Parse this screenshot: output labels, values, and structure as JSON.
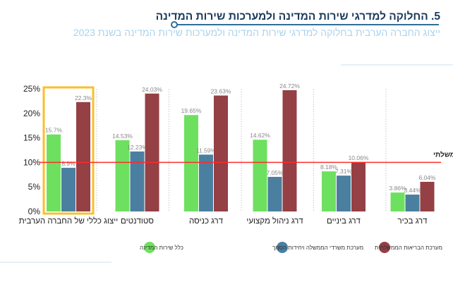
{
  "header": {
    "title": "5. החלוקה למדרגי שירות המדינה ולמערכות שירות המדינה",
    "subtitle": "ייצוג החברה הערבית בחלוקה למדרגי שירות המדינה ולמערכות שירות המדינה בשנת 2023"
  },
  "chart_data": {
    "type": "bar",
    "categories": [
      "ייצוג כללי של החברה הערבית",
      "סטודנטים",
      "דרג כניסה",
      "דרג ניהול מקצועי",
      "דרג ביניים",
      "דרג בכיר"
    ],
    "series": [
      {
        "name": "כלל שירות המדינה",
        "color": "#6ee05f",
        "values": [
          15.7,
          14.53,
          19.65,
          14.62,
          8.18,
          3.86
        ],
        "labels": [
          "15.7%",
          "14.53%",
          "19.65%",
          "14.62%",
          "8.18%",
          "3.86%"
        ]
      },
      {
        "name": "מערכת משרדי הממשלה ויחידות הסמך",
        "color": "#4a7fa0",
        "values": [
          8.9,
          12.23,
          11.59,
          7.05,
          7.31,
          3.44
        ],
        "labels": [
          "8.9%",
          "12.23%",
          "11.59%",
          "7.05%",
          "7.31%",
          "3.44%"
        ]
      },
      {
        "name": "מערכת הבריאות הממשלתית",
        "color": "#944044",
        "values": [
          22.3,
          24.03,
          23.63,
          24.72,
          10.06,
          6.04
        ],
        "labels": [
          "22.3%",
          "24.03%",
          "23.63%",
          "24.72%",
          "10.06%",
          "6.04%"
        ]
      }
    ],
    "yticks": [
      "0%",
      "5%",
      "10%",
      "15%",
      "20%",
      "25%"
    ],
    "ylim": [
      0,
      25
    ],
    "reference_line": {
      "value": 10,
      "label": "היעד הממשלתי",
      "color": "#ff2a2a"
    },
    "highlight": {
      "category_index": 0,
      "color": "#fbbf2a"
    },
    "legend_position": "bottom",
    "grid": false
  }
}
